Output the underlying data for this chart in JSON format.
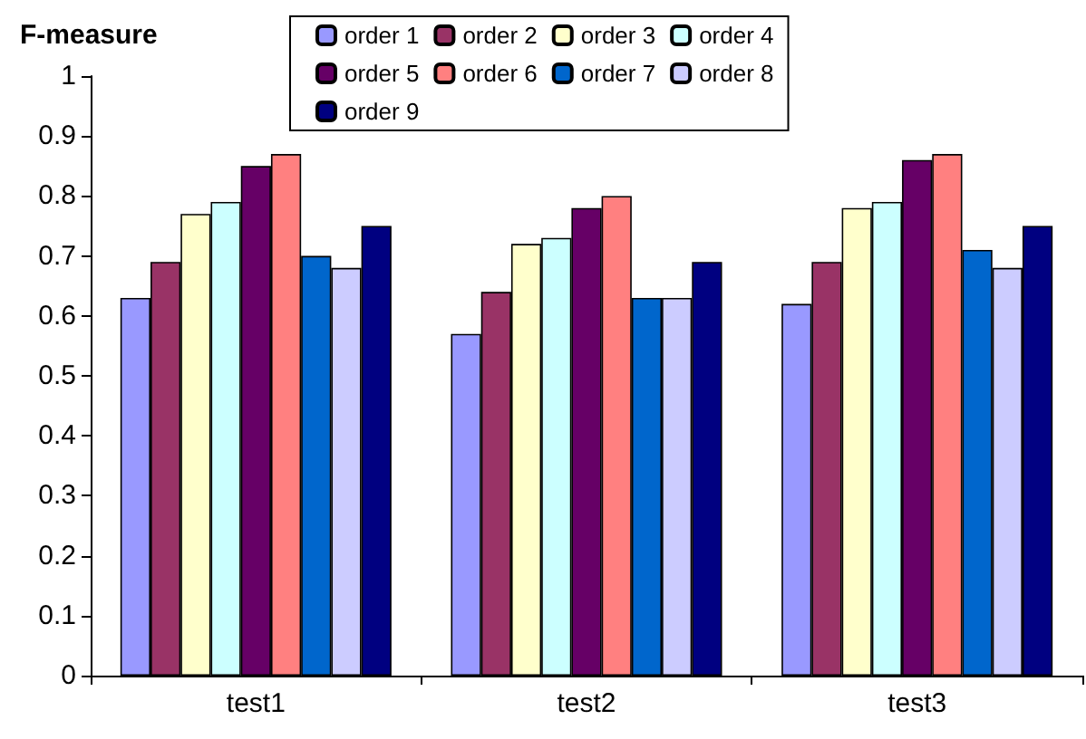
{
  "chart_data": {
    "type": "bar",
    "title": "F-measure",
    "categories": [
      "test1",
      "test2",
      "test3"
    ],
    "series": [
      {
        "name": "order 1",
        "color": "#9999ff",
        "values": [
          0.63,
          0.57,
          0.62
        ]
      },
      {
        "name": "order 2",
        "color": "#993366",
        "values": [
          0.69,
          0.64,
          0.69
        ]
      },
      {
        "name": "order 3",
        "color": "#ffffcc",
        "values": [
          0.77,
          0.72,
          0.78
        ]
      },
      {
        "name": "order 4",
        "color": "#ccffff",
        "values": [
          0.79,
          0.73,
          0.79
        ]
      },
      {
        "name": "order 5",
        "color": "#660066",
        "values": [
          0.85,
          0.78,
          0.86
        ]
      },
      {
        "name": "order 6",
        "color": "#ff8080",
        "values": [
          0.87,
          0.8,
          0.87
        ]
      },
      {
        "name": "order 7",
        "color": "#0066cc",
        "values": [
          0.7,
          0.63,
          0.71
        ]
      },
      {
        "name": "order 8",
        "color": "#ccccff",
        "values": [
          0.68,
          0.63,
          0.68
        ]
      },
      {
        "name": "order 9",
        "color": "#000080",
        "values": [
          0.75,
          0.69,
          0.75
        ]
      }
    ],
    "ylim": [
      0,
      1
    ],
    "yticks": [
      0,
      0.1,
      0.2,
      0.3,
      0.4,
      0.5,
      0.6,
      0.7,
      0.8,
      0.9,
      1
    ],
    "grid": false,
    "legend": "top"
  }
}
